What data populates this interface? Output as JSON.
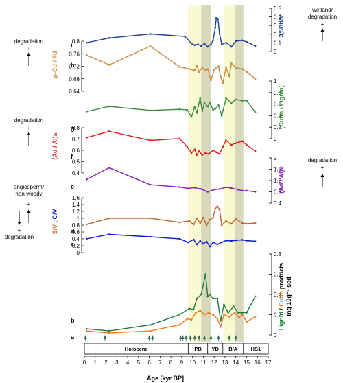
{
  "chart_data": {
    "type": "line",
    "xlabel": "Age [kyr BP]",
    "x_range": [
      0,
      17
    ],
    "x_ticks": [
      "0",
      "1",
      "2",
      "3",
      "4",
      "5",
      "6",
      "7",
      "8",
      "9",
      "10",
      "11",
      "12",
      "13",
      "14",
      "15",
      "16",
      "17"
    ],
    "bands": [
      {
        "from": 9.6,
        "to": 11.7,
        "color": "#fafad2"
      },
      {
        "from": 10.8,
        "to": 11.7,
        "color": "#d8d8bc"
      },
      {
        "from": 12.9,
        "to": 14.7,
        "color": "#fafad2"
      },
      {
        "from": 13.9,
        "to": 14.7,
        "color": "#d8d8bc"
      }
    ],
    "periods": [
      {
        "label": "Holocene",
        "from": 0,
        "to": 9.6
      },
      {
        "label": "PB",
        "from": 9.6,
        "to": 11.4
      },
      {
        "label": "YD",
        "from": 11.4,
        "to": 12.8
      },
      {
        "label": "B/A",
        "from": 12.8,
        "to": 14.7
      },
      {
        "label": "HS1",
        "from": 14.7,
        "to": 17
      }
    ],
    "markers_panel_letter": "a",
    "markers": [
      0.1,
      1.9,
      6.0,
      6.3,
      8.9,
      9.1,
      9.4,
      9.8,
      10.2,
      10.6,
      11.1,
      11.7,
      12.4,
      13.4,
      14.0
    ],
    "axes": {
      "i": {
        "label": "3,5Bd/V",
        "side": "right",
        "color": "#1a3e9a",
        "ticks": [
          "0",
          "0.1",
          "0.2",
          "0.3",
          "0.4",
          "0.5"
        ]
      },
      "h": {
        "label": "p-Cd / Fd",
        "side": "left",
        "color": "#c8893c",
        "ticks": [
          "0.64",
          "0.68",
          "0.72",
          "0.76",
          "0.8"
        ]
      },
      "g": {
        "label": "(Cutin / Lignin)",
        "side": "right",
        "color": "#3a8a3a",
        "ticks": [
          "0",
          "0.2",
          "0.4",
          "0.6",
          "0.8",
          "1"
        ]
      },
      "f": {
        "label": "(Ad / Al)s",
        "side": "left",
        "color": "#dd1a1a",
        "ticks": [
          "0.4",
          "0.5",
          "0.6",
          "0.7",
          "0.8"
        ]
      },
      "e": {
        "label": "(Ad / Al)v",
        "side": "right",
        "color": "#8a1ab8",
        "ticks": [
          "0.4",
          "0.8",
          "1.2",
          "1.6",
          "2"
        ]
      },
      "dc": {
        "label_a": "S/V",
        "label_b": "C/V",
        "side": "left",
        "color_a": "#c8632a",
        "color_b": "#0a1ad8",
        "ticks": [
          "0",
          "0.2",
          "0.4",
          "0.6",
          "0.8",
          "1",
          "1.2",
          "1.4",
          "1.6"
        ]
      },
      "b": {
        "label_a": "Lignin",
        "label_b": "Cutin",
        "label_c": "products",
        "label_d": "mg 10g⁻¹ sed",
        "slash": "/",
        "side": "right",
        "color_a": "#1e7a3a",
        "color_b": "#f07a1a",
        "ticks": [
          "0",
          "0.2",
          "0.4",
          "0.6",
          "0.8"
        ]
      }
    },
    "series": [
      {
        "panel": "i",
        "color": "#1a3e9a",
        "ylim": [
          0,
          0.5
        ],
        "x": [
          0.2,
          2.3,
          6.1,
          9.3,
          9.9,
          10.2,
          10.5,
          10.8,
          11.1,
          11.4,
          11.7,
          11.9,
          12.1,
          12.2,
          12.35,
          12.5,
          12.7,
          13.1,
          13.6,
          14.0,
          14.6,
          15.0,
          15.8
        ],
        "y": [
          0.11,
          0.17,
          0.22,
          0.19,
          0.1,
          0.08,
          0.09,
          0.07,
          0.1,
          0.06,
          0.09,
          0.14,
          0.3,
          0.42,
          0.41,
          0.22,
          0.09,
          0.11,
          0.06,
          0.13,
          0.14,
          0.12,
          0.07
        ]
      },
      {
        "panel": "h",
        "color": "#c8893c",
        "ylim": [
          0.62,
          0.8
        ],
        "x": [
          0.2,
          2.3,
          6.1,
          8.8,
          9.7,
          10.2,
          10.4,
          10.6,
          10.9,
          11.2,
          11.4,
          11.7,
          12.0,
          12.2,
          12.4,
          12.6,
          12.8,
          13.1,
          13.4,
          13.6,
          14.0,
          14.6,
          15.0,
          15.8
        ],
        "y": [
          0.75,
          0.715,
          0.782,
          0.708,
          0.7,
          0.695,
          0.712,
          0.69,
          0.705,
          0.695,
          0.7,
          0.66,
          0.698,
          0.705,
          0.71,
          0.672,
          0.65,
          0.705,
          0.675,
          0.72,
          0.705,
          0.7,
          0.69,
          0.665
        ]
      },
      {
        "panel": "g",
        "color": "#3a8a3a",
        "ylim": [
          0,
          1
        ],
        "x": [
          0.2,
          2.3,
          6.1,
          8.8,
          9.5,
          9.9,
          10.2,
          10.4,
          10.7,
          10.9,
          11.1,
          11.4,
          11.6,
          11.9,
          12.1,
          12.4,
          12.7,
          13.1,
          13.6,
          14.0,
          14.6,
          15.0,
          15.8
        ],
        "y": [
          0.47,
          0.56,
          0.49,
          0.51,
          0.5,
          0.38,
          0.55,
          0.45,
          0.7,
          0.48,
          0.62,
          0.56,
          0.62,
          0.5,
          0.52,
          0.58,
          0.4,
          0.7,
          0.62,
          0.68,
          0.66,
          0.66,
          0.46
        ]
      },
      {
        "panel": "f",
        "color": "#dd1a1a",
        "ylim": [
          0.35,
          0.85
        ],
        "x": [
          0.2,
          2.3,
          6.1,
          8.8,
          9.5,
          9.9,
          10.2,
          10.4,
          10.6,
          10.9,
          11.2,
          11.5,
          11.9,
          12.2,
          12.5,
          12.8,
          13.1,
          13.6,
          14.0,
          14.6,
          15.0,
          15.8
        ],
        "y": [
          0.74,
          0.81,
          0.71,
          0.73,
          0.64,
          0.57,
          0.61,
          0.55,
          0.59,
          0.55,
          0.57,
          0.56,
          0.6,
          0.58,
          0.56,
          0.64,
          0.71,
          0.66,
          0.68,
          0.7,
          0.66,
          0.59
        ]
      },
      {
        "panel": "e",
        "color": "#8a1ab8",
        "ylim": [
          0.4,
          2.0
        ],
        "x": [
          0.2,
          2.3,
          6.1,
          8.8,
          9.6,
          10.2,
          10.8,
          11.4,
          12.0,
          12.5,
          13.1,
          13.6,
          14.2,
          14.6,
          15.0,
          15.8
        ],
        "y": [
          1.24,
          1.65,
          1.05,
          0.97,
          0.92,
          0.95,
          0.9,
          0.8,
          0.88,
          0.9,
          0.96,
          0.93,
          0.88,
          0.84,
          0.84,
          0.8
        ]
      },
      {
        "panel": "d",
        "color": "#c8632a",
        "ylim": [
          0,
          1.6
        ],
        "x": [
          0.2,
          2.3,
          6.1,
          8.8,
          9.7,
          10.1,
          10.4,
          10.7,
          11.0,
          11.3,
          11.6,
          11.9,
          12.1,
          12.3,
          12.5,
          12.7,
          13.1,
          13.6,
          14.0,
          14.6,
          15.0,
          15.8
        ],
        "y": [
          0.82,
          1.0,
          1.0,
          0.88,
          0.92,
          0.82,
          1.0,
          0.86,
          1.02,
          0.8,
          0.96,
          1.02,
          1.28,
          1.35,
          1.25,
          0.8,
          0.92,
          0.84,
          0.98,
          0.86,
          0.84,
          0.86
        ]
      },
      {
        "panel": "c",
        "color": "#0a1ad8",
        "ylim": [
          0,
          1.6
        ],
        "x": [
          0.2,
          2.3,
          6.1,
          8.8,
          9.6,
          10.1,
          10.4,
          10.7,
          11.0,
          11.3,
          11.6,
          11.9,
          12.3,
          12.7,
          13.1,
          13.6,
          14.0,
          14.6,
          15.0,
          15.8
        ],
        "y": [
          0.4,
          0.53,
          0.46,
          0.4,
          0.3,
          0.38,
          0.24,
          0.34,
          0.26,
          0.32,
          0.18,
          0.3,
          0.24,
          0.3,
          0.35,
          0.34,
          0.36,
          0.37,
          0.35,
          0.33
        ]
      },
      {
        "panel": "b",
        "color": "#1e7a3a",
        "ylim": [
          0,
          0.8
        ],
        "x": [
          0.2,
          2.3,
          6.1,
          8.8,
          9.7,
          10.1,
          10.4,
          10.8,
          11.2,
          11.4,
          11.6,
          11.9,
          12.3,
          12.6,
          12.9,
          13.3,
          13.8,
          14.2,
          14.6,
          15.0,
          15.8
        ],
        "y": [
          0.06,
          0.04,
          0.1,
          0.2,
          0.26,
          0.25,
          0.36,
          0.4,
          0.6,
          0.38,
          0.4,
          0.36,
          0.36,
          0.14,
          0.3,
          0.22,
          0.28,
          0.22,
          0.22,
          0.22,
          0.38
        ]
      },
      {
        "panel": "b",
        "color": "#f07a1a",
        "ylim": [
          0,
          0.8
        ],
        "x": [
          0.2,
          2.3,
          6.1,
          8.8,
          9.5,
          9.9,
          10.3,
          10.7,
          11.1,
          11.5,
          11.9,
          12.3,
          12.6,
          12.9,
          13.4,
          13.9,
          14.3,
          14.6,
          15.0,
          15.8
        ],
        "y": [
          0.04,
          0.02,
          0.04,
          0.1,
          0.16,
          0.15,
          0.22,
          0.24,
          0.2,
          0.22,
          0.2,
          0.16,
          0.08,
          0.2,
          0.18,
          0.22,
          0.17,
          0.2,
          0.13,
          0.18
        ]
      }
    ],
    "panel_letters": [
      "i",
      "h",
      "g",
      "f",
      "e",
      "d",
      "c",
      "b"
    ],
    "side_notes": {
      "wetland": {
        "line1": "wetland/",
        "line2": "degradation",
        "sign": "+"
      },
      "degr_top": {
        "text": "degradation",
        "sign": "+"
      },
      "degr_mid": {
        "text": "degradation",
        "sign": "+"
      },
      "degr_e": {
        "text": "degradation",
        "sign": "+"
      },
      "angio": {
        "line1": "angiosperm/",
        "line2": "non-woody",
        "sign_up": "+",
        "sign_down": "+",
        "text": "degradation"
      }
    }
  }
}
